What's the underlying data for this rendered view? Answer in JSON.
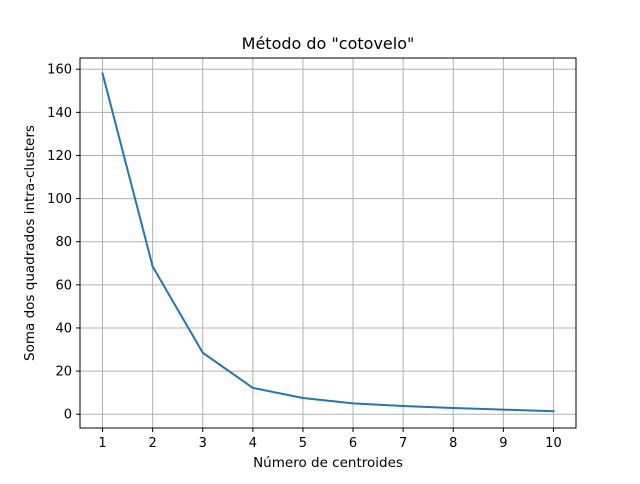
{
  "chart_data": {
    "type": "line",
    "title": "Método do \"cotovelo\"",
    "xlabel": "Número de centroides",
    "ylabel": "Soma dos quadrados intra-clusters",
    "x": [
      1,
      2,
      3,
      4,
      5,
      6,
      7,
      8,
      9,
      10
    ],
    "xticks": [
      "1",
      "2",
      "3",
      "4",
      "5",
      "6",
      "7",
      "8",
      "9",
      "10"
    ],
    "yticks": [
      "0",
      "20",
      "40",
      "60",
      "80",
      "100",
      "120",
      "140",
      "160"
    ],
    "xlim": [
      0.55,
      10.45
    ],
    "ylim": [
      -6.4,
      165.2
    ],
    "grid": true,
    "series": [
      {
        "values": [
          158,
          68.5,
          28.5,
          12.2,
          7.5,
          5.0,
          3.8,
          2.9,
          2.1,
          1.4
        ],
        "color": "#1f77b4"
      }
    ]
  }
}
